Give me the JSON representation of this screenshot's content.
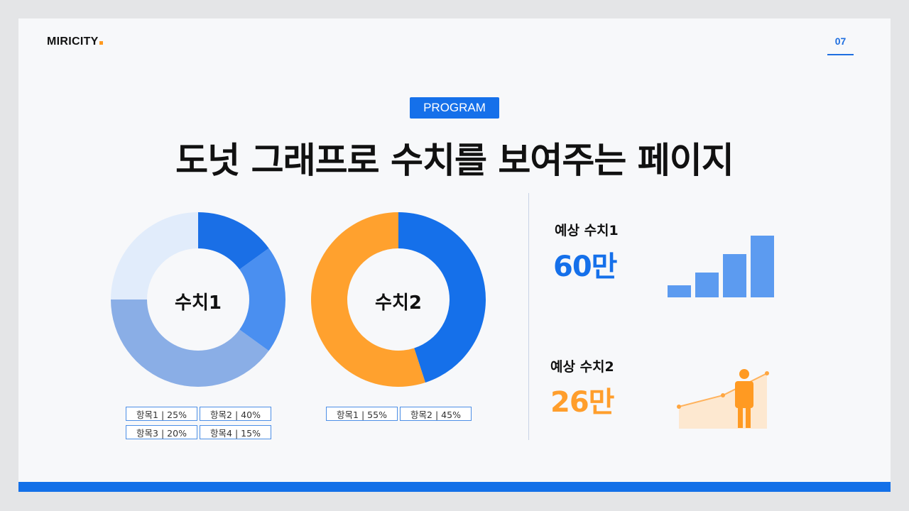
{
  "brand": {
    "logo_text": "MIRICITY",
    "accent_color": "#ff9a1f"
  },
  "page_number": "07",
  "section_tag": "PROGRAM",
  "title": "도넛 그래프로 수치를 보여주는 페이지",
  "colors": {
    "primary": "#1570ea",
    "orange": "#ff9e2c"
  },
  "chart_data": [
    {
      "type": "pie",
      "center_label": "수치1",
      "categories": [
        "항목1",
        "항목2",
        "항목3",
        "항목4"
      ],
      "values": [
        25,
        40,
        20,
        15
      ],
      "legend": [
        "항목1 | 25%",
        "항목2 | 40%",
        "항목3 | 20%",
        "항목4 | 15%"
      ],
      "colors": [
        "#e1ecfb",
        "#8aaee6",
        "#4a8ff0",
        "#1a6fe6"
      ]
    },
    {
      "type": "pie",
      "center_label": "수치2",
      "categories": [
        "항목1",
        "항목2"
      ],
      "values": [
        55,
        45
      ],
      "legend": [
        "항목1 | 55%",
        "항목2 | 45%"
      ],
      "colors": [
        "#ffa12e",
        "#1570ea"
      ]
    }
  ],
  "stats": [
    {
      "label": "예상 수치1",
      "value": "60만",
      "icon": "bar-growth-icon"
    },
    {
      "label": "예상 수치2",
      "value": "26만",
      "icon": "person-growth-icon"
    }
  ]
}
